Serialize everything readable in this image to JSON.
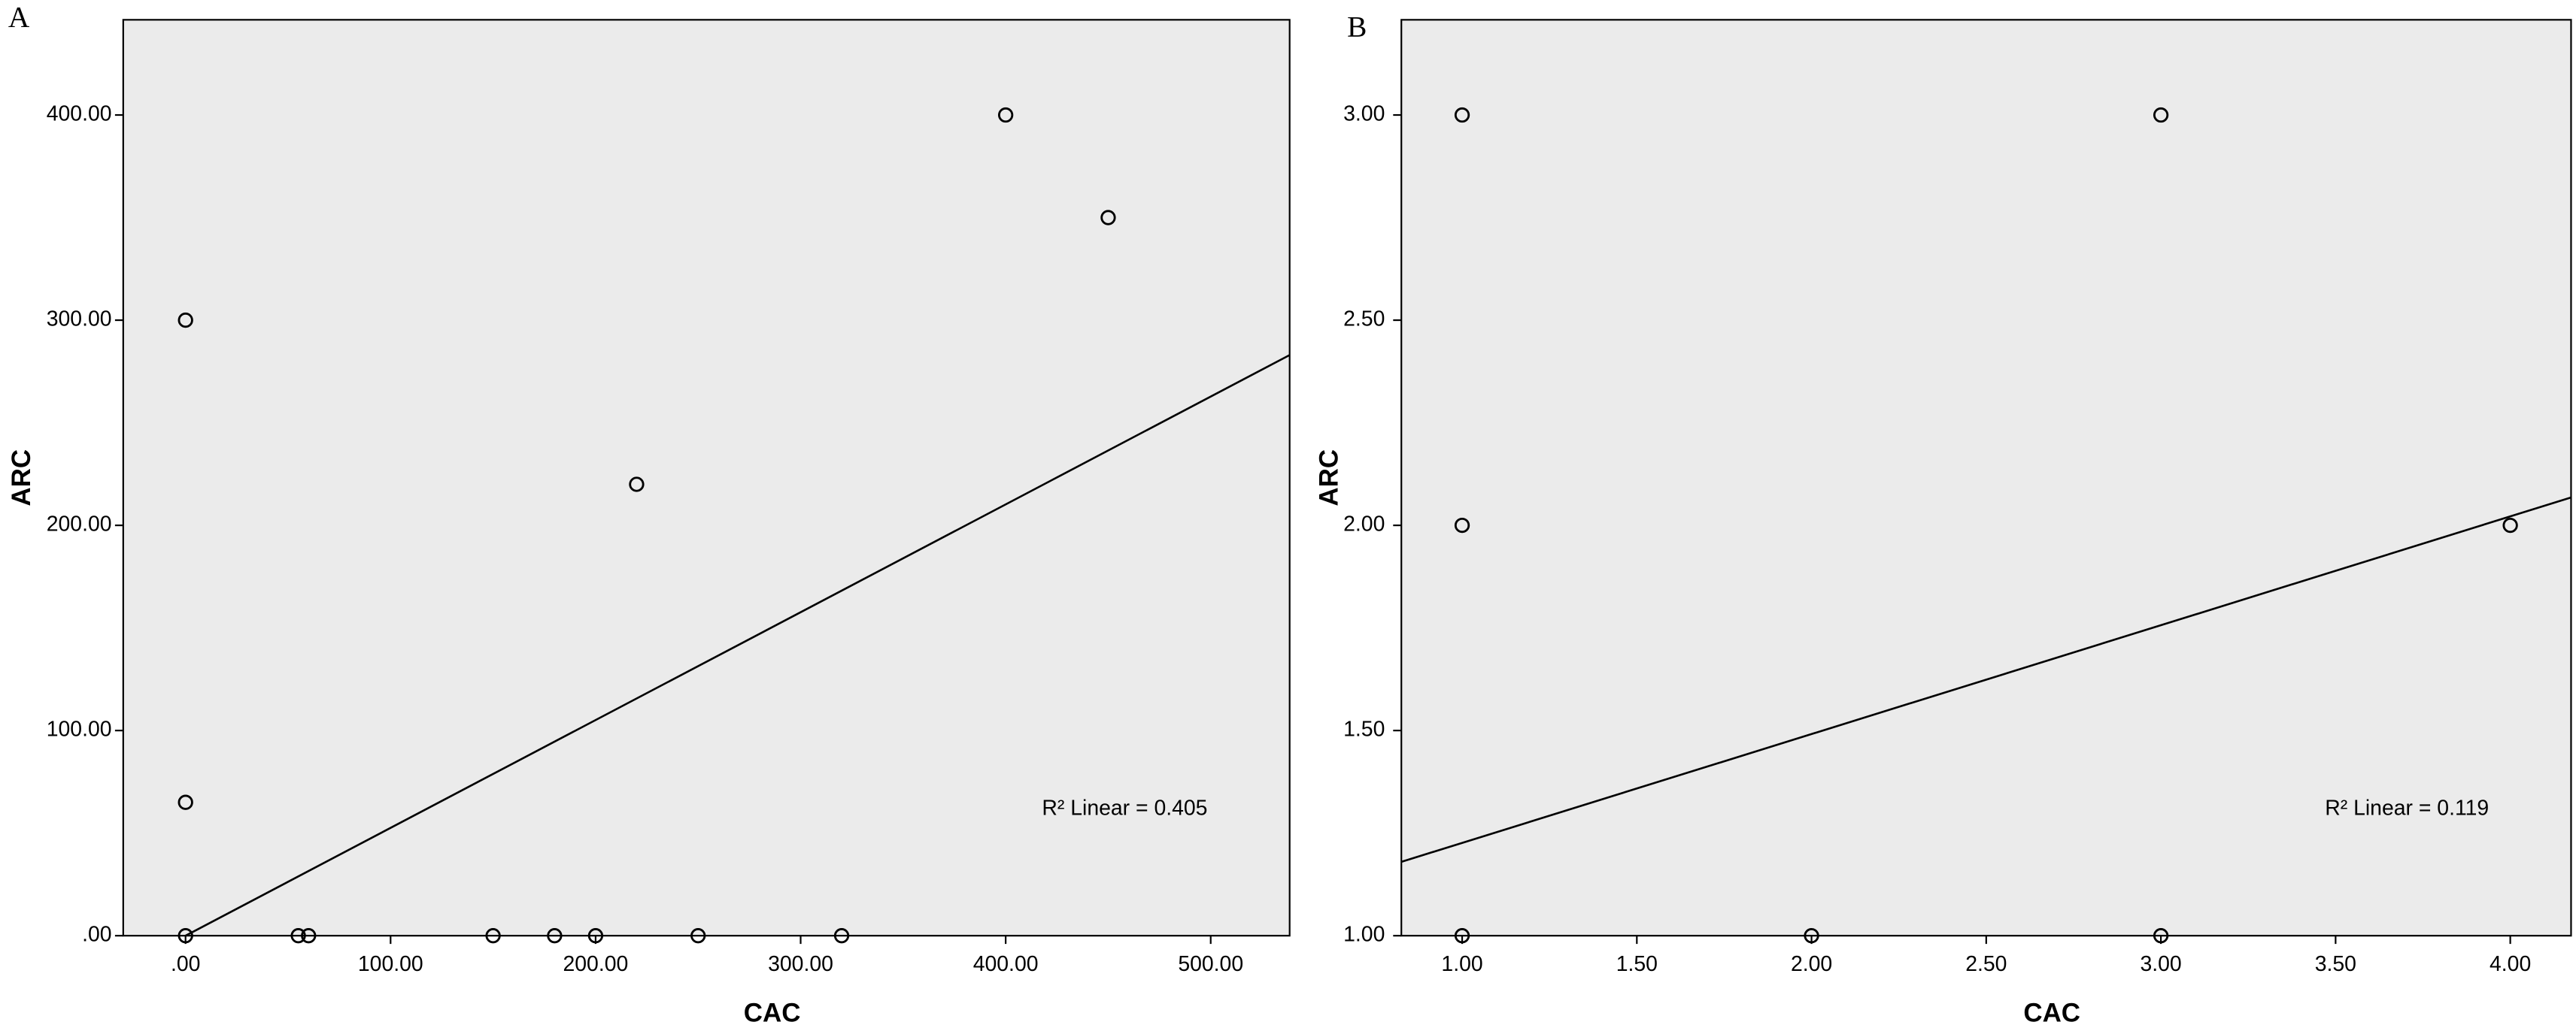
{
  "chart_data": [
    {
      "type": "scatter",
      "panel_label": "A",
      "x_label": "CAC",
      "y_label": "ARC",
      "annotation": "R² Linear = 0.405",
      "x": [
        0,
        0,
        0,
        55,
        60,
        150,
        180,
        200,
        220,
        250,
        320,
        400,
        450
      ],
      "values": [
        300,
        65,
        0,
        0,
        0,
        0,
        0,
        0,
        220,
        0,
        0,
        400,
        350
      ],
      "fit_line": {
        "x": [
          0,
          538.5
        ],
        "values": [
          0,
          283
        ]
      },
      "xlim": [
        -30.4,
        538.5
      ],
      "ylim": [
        0,
        446.4
      ],
      "xticks": [
        {
          "value": 0,
          "label": ".00"
        },
        {
          "value": 100,
          "label": "100.00"
        },
        {
          "value": 200,
          "label": "200.00"
        },
        {
          "value": 300,
          "label": "300.00"
        },
        {
          "value": 400,
          "label": "400.00"
        },
        {
          "value": 500,
          "label": "500.00"
        }
      ],
      "yticks": [
        {
          "value": 0,
          "label": ".00"
        },
        {
          "value": 100,
          "label": "100.00"
        },
        {
          "value": 200,
          "label": "200.00"
        },
        {
          "value": 300,
          "label": "300.00"
        },
        {
          "value": 400,
          "label": "400.00"
        }
      ],
      "grid": false,
      "color": "#000000",
      "background": "#ebebeb"
    },
    {
      "type": "scatter",
      "panel_label": "B",
      "x_label": "CAC",
      "y_label": "ARC",
      "annotation": "R² Linear = 0.119",
      "x": [
        1,
        1,
        1,
        2,
        3,
        3,
        4
      ],
      "values": [
        3,
        2,
        1,
        1,
        3,
        1,
        2
      ],
      "fit_line": {
        "x": [
          0.826,
          4.174
        ],
        "values": [
          1.18,
          2.068
        ]
      },
      "xlim": [
        0.826,
        4.174
      ],
      "ylim": [
        1,
        3.232
      ],
      "xticks": [
        {
          "value": 1,
          "label": "1.00"
        },
        {
          "value": 1.5,
          "label": "1.50"
        },
        {
          "value": 2,
          "label": "2.00"
        },
        {
          "value": 2.5,
          "label": "2.50"
        },
        {
          "value": 3,
          "label": "3.00"
        },
        {
          "value": 3.5,
          "label": "3.50"
        },
        {
          "value": 4,
          "label": "4.00"
        }
      ],
      "yticks": [
        {
          "value": 1,
          "label": "1.00"
        },
        {
          "value": 1.5,
          "label": "1.50"
        },
        {
          "value": 2,
          "label": "2.00"
        },
        {
          "value": 2.5,
          "label": "2.50"
        },
        {
          "value": 3,
          "label": "3.00"
        }
      ],
      "grid": false,
      "color": "#000000",
      "background": "#ebebeb"
    }
  ]
}
